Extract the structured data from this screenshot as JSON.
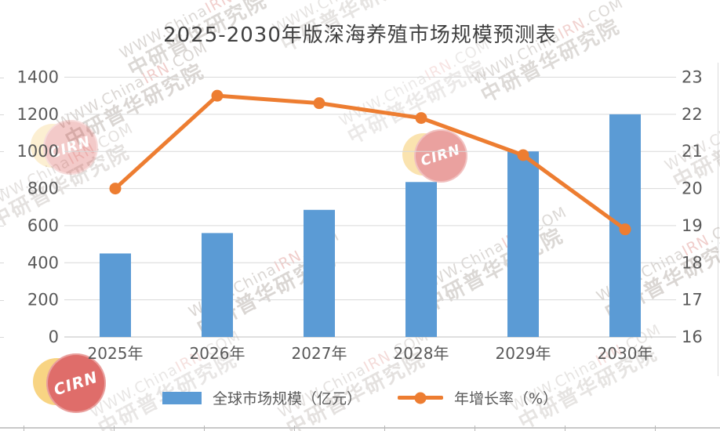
{
  "title": "2025-2030年版深海养殖市场规模预测表",
  "legend": {
    "bar_label": "全球市场规模（亿元）",
    "line_label": "年增长率（%）"
  },
  "chart_data": {
    "type": "combo",
    "title": "2025-2030年版深海养殖市场规模预测表",
    "categories": [
      "2025年",
      "2026年",
      "2027年",
      "2028年",
      "2029年",
      "2030年"
    ],
    "series": [
      {
        "name": "全球市场规模（亿元）",
        "type": "bar",
        "axis": "left",
        "color": "#5B9BD5",
        "values": [
          450,
          560,
          685,
          835,
          1000,
          1200
        ]
      },
      {
        "name": "年增长率（%）",
        "type": "line",
        "axis": "right",
        "color": "#ED7D31",
        "values": [
          20,
          22.5,
          22.3,
          21.9,
          20.9,
          18.9
        ]
      }
    ],
    "left_axis": {
      "min": 0,
      "max": 1400,
      "step": 200,
      "ticks": [
        0,
        200,
        400,
        600,
        800,
        1000,
        1200,
        1400
      ]
    },
    "right_axis": {
      "min": 16,
      "max": 23,
      "step": 1,
      "ticks": [
        16,
        17,
        18,
        19,
        20,
        21,
        22,
        23
      ]
    },
    "grid": true,
    "legend_position": "bottom"
  },
  "watermark": {
    "line1_pre": "WWW.China",
    "line1_highlight": "IRN",
    "line1_post": ".COM",
    "line2": "中研普华研究院",
    "stamp_text": "CIRN"
  },
  "colors": {
    "bar_blue": "#5B9BD5",
    "line_orange": "#ED7D31",
    "gridline": "#D9D9D9",
    "axis_line": "#BFBFBF",
    "tick_text": "#595959",
    "title_text": "#404040",
    "stamp_red": "#D2302C",
    "stamp_yellow": "#F6C34F",
    "watermark_gray": "#a89f99",
    "watermark_pink": "#dd8a84"
  }
}
